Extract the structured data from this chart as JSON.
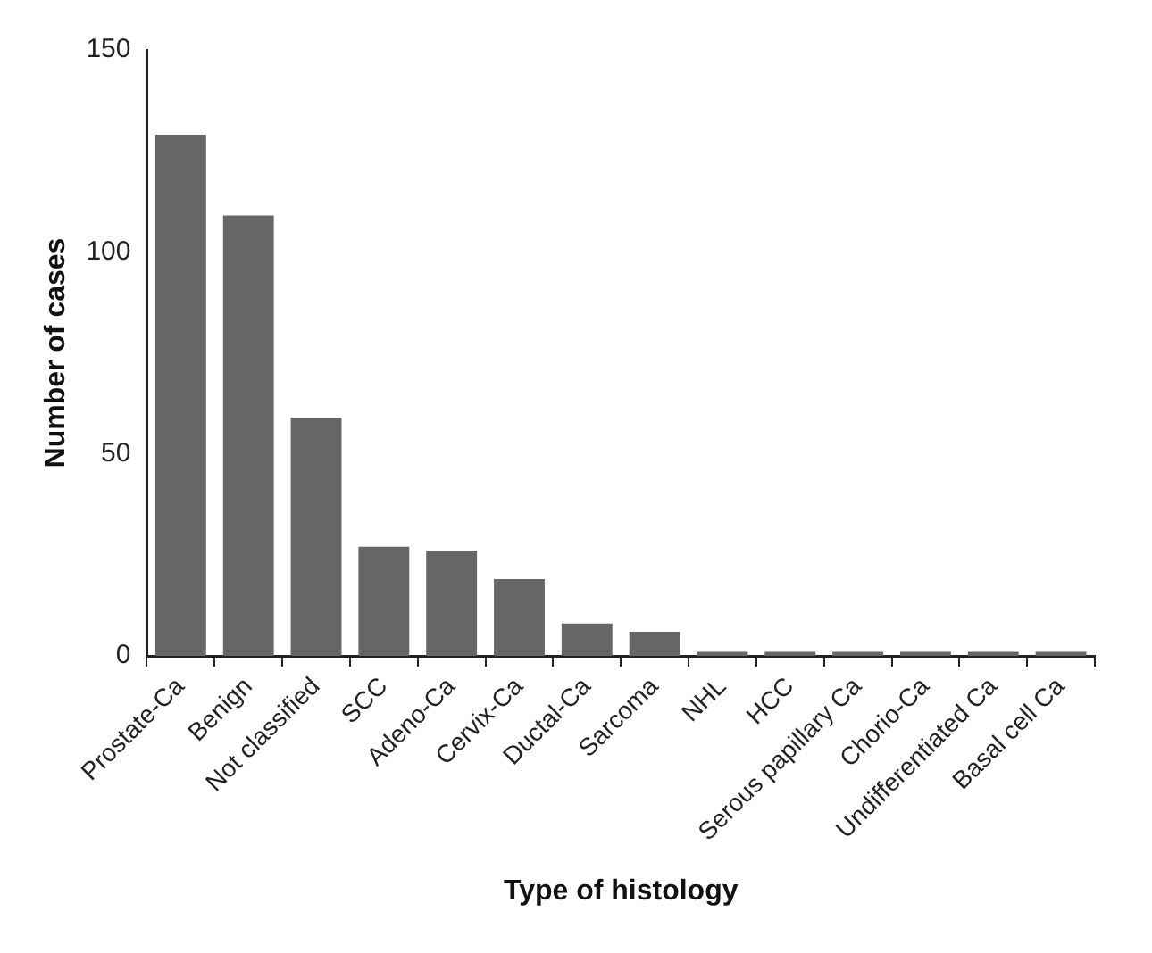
{
  "chart_data": {
    "type": "bar",
    "xlabel": "Type of histology",
    "ylabel": "Number of cases",
    "categories": [
      "Prostate-Ca",
      "Benign",
      "Not classified",
      "SCC",
      "Adeno-Ca",
      "Cervix-Ca",
      "Ductal-Ca",
      "Sarcoma",
      "NHL",
      "HCC",
      "Serous papillary Ca",
      "Chorio-Ca",
      "Undifferentiated Ca",
      "Basal cell Ca"
    ],
    "values": [
      129,
      109,
      59,
      27,
      26,
      19,
      8,
      6,
      1,
      1,
      1,
      1,
      1,
      1
    ],
    "color": "#666666",
    "ylim": [
      0,
      150
    ],
    "yticks": [
      0,
      50,
      100,
      150
    ],
    "grid": false,
    "legend": false
  }
}
